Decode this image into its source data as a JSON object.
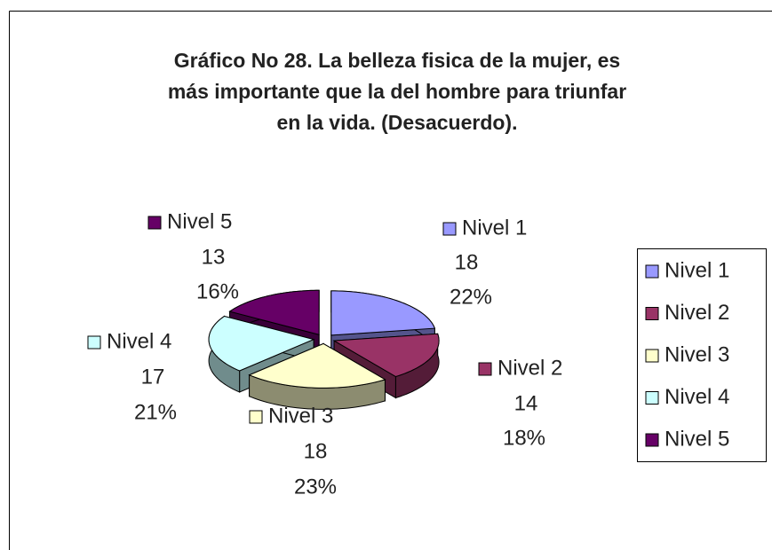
{
  "chart_data": {
    "type": "pie3d",
    "title_lines": [
      "Gráfico No 28. La belleza fisica de la mujer, es",
      "más importante que la del hombre para triunfar",
      "en la vida. (Desacuerdo)."
    ],
    "categories": [
      "Nivel 1",
      "Nivel 2",
      "Nivel 3",
      "Nivel 4",
      "Nivel 5"
    ],
    "values": [
      18,
      14,
      18,
      17,
      13
    ],
    "percent_labels": [
      "22%",
      "18%",
      "23%",
      "21%",
      "16%"
    ],
    "colors": [
      "#9999ff",
      "#993366",
      "#ffffcc",
      "#ccffff",
      "#660066"
    ],
    "legend": "right"
  }
}
